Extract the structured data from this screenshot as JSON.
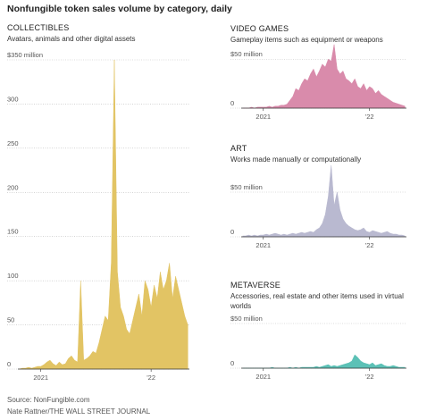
{
  "title": "Nonfungible token sales volume by category, daily",
  "source": "Source: NonFungible.com",
  "credit": "Nate Rattner/THE WALL STREET JOURNAL",
  "chart_data": [
    {
      "type": "area",
      "title": "COLLECTIBLES",
      "subtitle": "Avatars, animals and other digital assets",
      "color": "#e2c464",
      "categories": [
        null,
        null,
        null,
        null,
        null,
        null,
        null,
        "2021",
        null,
        null,
        null,
        null,
        null,
        null,
        null,
        null,
        null,
        null,
        null,
        null,
        null,
        null,
        null,
        null,
        null,
        null,
        null,
        null,
        null,
        null,
        null,
        null,
        null,
        null,
        null,
        null,
        null,
        null,
        null,
        null,
        null,
        null,
        null,
        "'22",
        null,
        null,
        null,
        null,
        null,
        null,
        null,
        null,
        null,
        null,
        null,
        null
      ],
      "values": [
        0,
        1,
        1,
        2,
        1,
        2,
        3,
        3,
        5,
        8,
        10,
        6,
        4,
        8,
        5,
        6,
        12,
        15,
        10,
        8,
        100,
        10,
        12,
        15,
        20,
        18,
        30,
        45,
        60,
        55,
        120,
        350,
        110,
        70,
        60,
        45,
        40,
        55,
        70,
        85,
        60,
        100,
        90,
        70,
        95,
        80,
        110,
        90,
        100,
        120,
        80,
        105,
        90,
        75,
        60,
        50
      ],
      "ylim": [
        0,
        350
      ],
      "yticks": [
        0,
        50,
        100,
        150,
        200,
        250,
        300,
        {
          "value": 350,
          "label": "$350 million"
        }
      ],
      "grid": true
    },
    {
      "type": "area",
      "title": "VIDEO GAMES",
      "subtitle": "Gameplay items such as equipment or weapons",
      "color": "#d98bab",
      "categories": [
        null,
        null,
        null,
        null,
        null,
        null,
        null,
        "2021",
        null,
        null,
        null,
        null,
        null,
        null,
        null,
        null,
        null,
        null,
        null,
        null,
        null,
        null,
        null,
        null,
        null,
        null,
        null,
        null,
        null,
        null,
        null,
        null,
        null,
        null,
        null,
        null,
        null,
        null,
        null,
        null,
        null,
        null,
        null,
        "'22",
        null,
        null,
        null,
        null,
        null,
        null,
        null,
        null,
        null,
        null,
        null,
        null
      ],
      "values": [
        0,
        0,
        0,
        1,
        0,
        1,
        1,
        1,
        1,
        2,
        1,
        2,
        2,
        3,
        3,
        4,
        8,
        12,
        20,
        18,
        25,
        30,
        28,
        35,
        40,
        32,
        38,
        45,
        42,
        50,
        48,
        65,
        40,
        35,
        38,
        30,
        28,
        25,
        30,
        22,
        20,
        25,
        18,
        22,
        20,
        15,
        18,
        14,
        12,
        10,
        8,
        6,
        5,
        4,
        3,
        2
      ],
      "ylim": [
        0,
        63
      ],
      "yticks": [
        0,
        {
          "value": 50,
          "label": "$50 million"
        }
      ],
      "grid": true
    },
    {
      "type": "area",
      "title": "ART",
      "subtitle": "Works made manually or computationally",
      "color": "#b9b9d0",
      "categories": [
        null,
        null,
        null,
        null,
        null,
        null,
        null,
        "2021",
        null,
        null,
        null,
        null,
        null,
        null,
        null,
        null,
        null,
        null,
        null,
        null,
        null,
        null,
        null,
        null,
        null,
        null,
        null,
        null,
        null,
        null,
        null,
        null,
        null,
        null,
        null,
        null,
        null,
        null,
        null,
        null,
        null,
        null,
        null,
        "'22",
        null,
        null,
        null,
        null,
        null,
        null,
        null,
        null,
        null,
        null,
        null,
        null
      ],
      "values": [
        1,
        1,
        2,
        1,
        2,
        1,
        2,
        2,
        3,
        2,
        3,
        4,
        3,
        2,
        3,
        2,
        3,
        4,
        3,
        4,
        5,
        4,
        5,
        6,
        5,
        8,
        10,
        15,
        25,
        45,
        80,
        35,
        50,
        30,
        20,
        15,
        12,
        10,
        8,
        7,
        8,
        10,
        6,
        5,
        7,
        6,
        5,
        4,
        5,
        6,
        4,
        3,
        3,
        2,
        2,
        1
      ],
      "ylim": [
        0,
        80
      ],
      "yticks": [
        0,
        {
          "value": 50,
          "label": "$50 million"
        }
      ],
      "grid": true
    },
    {
      "type": "area",
      "title": "METAVERSE",
      "subtitle": "Accessories, real estate and other items used in virtual worlds",
      "color": "#5cc1b6",
      "categories": [
        null,
        null,
        null,
        null,
        null,
        null,
        null,
        "2021",
        null,
        null,
        null,
        null,
        null,
        null,
        null,
        null,
        null,
        null,
        null,
        null,
        null,
        null,
        null,
        null,
        null,
        null,
        null,
        null,
        null,
        null,
        null,
        null,
        null,
        null,
        null,
        null,
        null,
        null,
        null,
        null,
        null,
        null,
        null,
        "'22",
        null,
        null,
        null,
        null,
        null,
        null,
        null,
        null,
        null,
        null,
        null,
        null
      ],
      "values": [
        0,
        0,
        0,
        0,
        0,
        0,
        0,
        0,
        0,
        0,
        1,
        0,
        0,
        0,
        0,
        0,
        1,
        0,
        1,
        0,
        1,
        1,
        1,
        1,
        1,
        2,
        1,
        2,
        3,
        4,
        2,
        3,
        2,
        3,
        4,
        5,
        6,
        8,
        15,
        12,
        8,
        6,
        5,
        4,
        6,
        3,
        4,
        5,
        3,
        2,
        2,
        3,
        2,
        1,
        1,
        1
      ],
      "ylim": [
        0,
        62
      ],
      "yticks": [
        0,
        {
          "value": 50,
          "label": "$50 million"
        }
      ],
      "grid": true
    }
  ]
}
